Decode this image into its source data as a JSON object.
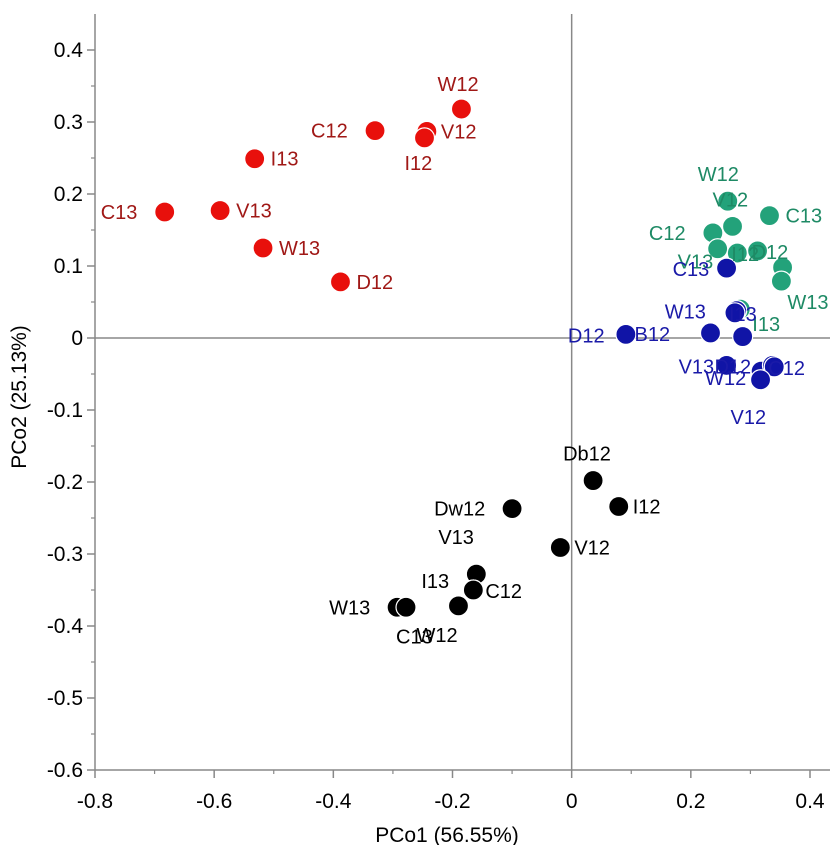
{
  "chart_data": {
    "type": "scatter",
    "title": "",
    "xlabel": "PCo1 (56.55%)",
    "ylabel": "PCo2 (25.13%)",
    "xlim": [
      -0.8,
      0.43
    ],
    "ylim": [
      -0.6,
      0.45
    ],
    "x_ticks": [
      -0.8,
      -0.6,
      -0.4,
      -0.2,
      0,
      0.2,
      0.4
    ],
    "x_tick_labels": [
      "-0.8",
      "-0.6",
      "-0.4",
      "-0.2",
      "0",
      "0.2",
      "0.4"
    ],
    "y_ticks": [
      0.4,
      0.3,
      0.2,
      0.1,
      0,
      -0.1,
      -0.2,
      -0.3,
      -0.4,
      -0.5,
      -0.6
    ],
    "y_tick_labels": [
      "0.4",
      "0.3",
      "0.2",
      "0.1",
      "0",
      "-0.1",
      "-0.2",
      "-0.3",
      "-0.4",
      "-0.5",
      "-0.6"
    ],
    "zero_lines": true,
    "grid": false,
    "series": [
      {
        "color": "#e8100c",
        "label_color": "#a01816",
        "points": [
          {
            "label": "W12",
            "x": -0.185,
            "y": 0.318
          },
          {
            "label": "C12",
            "x": -0.33,
            "y": 0.288
          },
          {
            "label": "V12",
            "x": -0.243,
            "y": 0.287
          },
          {
            "label": "I12",
            "x": -0.247,
            "y": 0.278
          },
          {
            "label": "I13",
            "x": -0.532,
            "y": 0.249
          },
          {
            "label": "C13",
            "x": -0.683,
            "y": 0.175
          },
          {
            "label": "V13",
            "x": -0.59,
            "y": 0.177
          },
          {
            "label": "W13",
            "x": -0.518,
            "y": 0.125
          },
          {
            "label": "D12",
            "x": -0.388,
            "y": 0.078
          }
        ]
      },
      {
        "color": "#23a27a",
        "label_color": "#1e8a65",
        "points": [
          {
            "label": "W12",
            "x": 0.262,
            "y": 0.19
          },
          {
            "label": "V12",
            "x": 0.27,
            "y": 0.155
          },
          {
            "label": "C13",
            "x": 0.332,
            "y": 0.17
          },
          {
            "label": "C12",
            "x": 0.237,
            "y": 0.146
          },
          {
            "label": "V13",
            "x": 0.245,
            "y": 0.124
          },
          {
            "label": "I12",
            "x": 0.278,
            "y": 0.118
          },
          {
            "label": "D12",
            "x": 0.312,
            "y": 0.121
          },
          {
            "label": "",
            "x": 0.354,
            "y": 0.098
          },
          {
            "label": "W13",
            "x": 0.352,
            "y": 0.079
          },
          {
            "label": "I13",
            "x": 0.283,
            "y": 0.04
          }
        ]
      },
      {
        "color": "#1014a6",
        "label_color": "#1a1aa8",
        "points": [
          {
            "label": "C13",
            "x": 0.26,
            "y": 0.097
          },
          {
            "label": "W13",
            "x": 0.277,
            "y": 0.038
          },
          {
            "label": "I13",
            "x": 0.274,
            "y": 0.035
          },
          {
            "label": "D12",
            "x": 0.091,
            "y": 0.005
          },
          {
            "label": "B12",
            "x": 0.233,
            "y": 0.007
          },
          {
            "label": "",
            "x": 0.287,
            "y": 0.002
          },
          {
            "label": "V13",
            "x": 0.26,
            "y": -0.038
          },
          {
            "label": "W12",
            "x": 0.318,
            "y": -0.046
          },
          {
            "label": "D12",
            "x": 0.337,
            "y": -0.038
          },
          {
            "label": "C12",
            "x": 0.34,
            "y": -0.04
          },
          {
            "label": "V12",
            "x": 0.317,
            "y": -0.058
          }
        ]
      },
      {
        "color": "#000000",
        "label_color": "#000000",
        "points": [
          {
            "label": "Db12",
            "x": 0.036,
            "y": -0.198
          },
          {
            "label": "I12",
            "x": 0.079,
            "y": -0.234
          },
          {
            "label": "Dw12",
            "x": -0.1,
            "y": -0.237
          },
          {
            "label": "V12",
            "x": -0.019,
            "y": -0.291
          },
          {
            "label": "V13",
            "x": -0.16,
            "y": -0.328
          },
          {
            "label": "I13",
            "x": -0.165,
            "y": -0.35
          },
          {
            "label": "C12",
            "x": -0.165,
            "y": -0.35
          },
          {
            "label": "W13",
            "x": -0.293,
            "y": -0.374
          },
          {
            "label": "C13",
            "x": -0.278,
            "y": -0.374
          },
          {
            "label": "W12",
            "x": -0.19,
            "y": -0.372
          }
        ]
      }
    ]
  }
}
